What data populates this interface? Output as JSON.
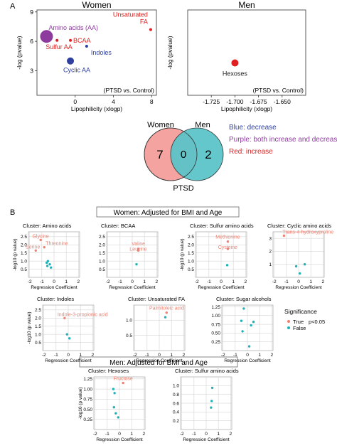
{
  "panel_labels": {
    "a": "A",
    "b": "B"
  },
  "venn": {
    "left_label": "Women",
    "right_label": "Men",
    "left_value": "7",
    "overlap_value": "0",
    "right_value": "2",
    "bottom_label": "PTSD",
    "left_color": "#f4a3a0",
    "right_color": "#5cc4c8",
    "legend": [
      {
        "text": "Blue: decrease",
        "color": "#2e3fa0"
      },
      {
        "text": "Purple: both increase and decrease",
        "color": "#8e3b9e"
      },
      {
        "text": "Red: increase",
        "color": "#e02020"
      }
    ]
  },
  "section_headers": {
    "women": "Women: Adjusted for BMI and Age",
    "men": "Men: Adjusted for BMI and Age"
  },
  "significance_legend": {
    "title": "Significance",
    "items": [
      {
        "label": "True",
        "color": "#f08070"
      },
      {
        "label": "False",
        "color": "#20b2b8"
      }
    ],
    "note": "p<0.05"
  },
  "chart_data": [
    {
      "id": "women-bubble",
      "type": "scatter",
      "title": "Women",
      "xlabel": "Lipophilicity (xlogp)",
      "ylabel": "-log (pvalue)",
      "annotation": "(PTSD vs. Control)",
      "xlim": [
        -4,
        8.5
      ],
      "ylim": [
        0.5,
        9.2
      ],
      "xticks": [
        "0",
        "4",
        "8"
      ],
      "yticks": [
        "3",
        "6",
        "9"
      ],
      "points": [
        {
          "label": "Amino acids (AA)",
          "x": -3.0,
          "y": 6.5,
          "size": 9,
          "color": "#8e3b9e"
        },
        {
          "label": "BCAA",
          "x": -0.5,
          "y": 6.1,
          "size": 2,
          "color": "#e02020"
        },
        {
          "label": "Sulfur AA",
          "x": -1.9,
          "y": 6.1,
          "size": 2,
          "color": "#e02020"
        },
        {
          "label": "Indoles",
          "x": 1.2,
          "y": 5.5,
          "size": 2,
          "color": "#2e3fa0"
        },
        {
          "label": "Cyclic AA",
          "x": -0.5,
          "y": 4.0,
          "size": 5,
          "color": "#2e3fa0"
        },
        {
          "label": "Unsaturated FA",
          "x": 7.9,
          "y": 7.2,
          "size": 2,
          "color": "#e02020"
        }
      ]
    },
    {
      "id": "men-bubble",
      "type": "scatter",
      "title": "Men",
      "xlabel": "Lipophilicity (xlogp)",
      "ylabel": "-log (pvalue)",
      "annotation": "(PTSD vs. Control)",
      "xlim": [
        -1.75,
        -1.625
      ],
      "ylim": [
        0.5,
        9.2
      ],
      "xticks": [
        "-1.725",
        "-1.700",
        "-1.675",
        "-1.650"
      ],
      "points": [
        {
          "label": "Hexoses",
          "x": -1.7,
          "y": 3.8,
          "size": 5,
          "color": "#e02020"
        }
      ]
    },
    {
      "id": "w-amino-acids",
      "type": "scatter",
      "title": "Cluster: Amino acids",
      "xlabel": "Regression Coefficient",
      "ylabel": "-log10 (p value)",
      "xlim": [
        -2.1,
        2.1
      ],
      "ylim": [
        0,
        2.8
      ],
      "xticks": [
        "-2",
        "-1",
        "0",
        "1",
        "2"
      ],
      "yticks": [
        "0.5",
        "1.0",
        "1.5",
        "2.0",
        "2.5"
      ],
      "points": [
        {
          "label": "Glycine",
          "x": -1.1,
          "y": 2.3,
          "sig": true
        },
        {
          "label": "Threonine",
          "x": -0.8,
          "y": 1.85,
          "sig": true
        },
        {
          "label": "Serine",
          "x": -1.5,
          "y": 1.65,
          "sig": true
        },
        {
          "x": -0.5,
          "y": 1.0,
          "sig": false
        },
        {
          "x": -0.6,
          "y": 0.9,
          "sig": false
        },
        {
          "x": -0.35,
          "y": 0.8,
          "sig": false
        },
        {
          "x": -0.55,
          "y": 0.7,
          "sig": false
        },
        {
          "x": -0.25,
          "y": 0.6,
          "sig": false
        }
      ]
    },
    {
      "id": "w-bcaa",
      "type": "scatter",
      "title": "Cluster: BCAA",
      "xlabel": "Regression Coefficient",
      "ylabel": "",
      "xlim": [
        -2.1,
        2.1
      ],
      "ylim": [
        0,
        2.8
      ],
      "xticks": [
        "-2",
        "-1",
        "0",
        "1",
        "2"
      ],
      "yticks": [
        "0.5",
        "1.0",
        "1.5",
        "2.0",
        "2.5"
      ],
      "points": [
        {
          "label": "Valine",
          "x": 0.5,
          "y": 1.75,
          "sig": true
        },
        {
          "label": "Leucine",
          "x": 0.5,
          "y": 1.65,
          "sig": true
        },
        {
          "x": 0.35,
          "y": 0.8,
          "sig": false
        }
      ]
    },
    {
      "id": "w-sulfur-aa",
      "type": "scatter",
      "title": "Cluster: Sulfur amino acids",
      "xlabel": "Regression Coefficient",
      "ylabel": "-log10 (p value)",
      "xlim": [
        -2.1,
        2.1
      ],
      "ylim": [
        0,
        2.8
      ],
      "xticks": [
        "-2",
        "-1",
        "0",
        "1",
        "2"
      ],
      "yticks": [
        "0.5",
        "1.0",
        "1.5",
        "2.0",
        "2.5"
      ],
      "points": [
        {
          "label": "Methionine",
          "x": 0.55,
          "y": 2.2,
          "sig": true
        },
        {
          "label": "Cysteine",
          "x": 0.55,
          "y": 1.75,
          "sig": true
        },
        {
          "x": 0.5,
          "y": 0.75,
          "sig": false
        }
      ]
    },
    {
      "id": "w-cyclic-aa",
      "type": "scatter",
      "title": "Cluster: Cyclic amino acids",
      "xlabel": "Regression Coefficient",
      "ylabel": "",
      "xlim": [
        -2.1,
        2.1
      ],
      "ylim": [
        0,
        3.5
      ],
      "xticks": [
        "-2",
        "-1",
        "0",
        "1",
        "2"
      ],
      "yticks": [
        "1",
        "2",
        "3"
      ],
      "points": [
        {
          "label": "Trans-4-hydroxyproline",
          "x": -1.2,
          "y": 3.2,
          "sig": true
        },
        {
          "x": 0.5,
          "y": 1.0,
          "sig": false
        },
        {
          "x": -0.2,
          "y": 0.85,
          "sig": false
        },
        {
          "x": 0.1,
          "y": 0.3,
          "sig": false
        }
      ]
    },
    {
      "id": "w-indoles",
      "type": "scatter",
      "title": "Cluster: Indoles",
      "xlabel": "Regression Coefficient",
      "ylabel": "-log10 (p value)",
      "xlim": [
        -2.1,
        2.1
      ],
      "ylim": [
        0,
        2.8
      ],
      "xticks": [
        "-2",
        "-1",
        "0",
        "1",
        "2"
      ],
      "yticks": [
        "0.5",
        "1.0",
        "1.5",
        "2.0",
        "2.5"
      ],
      "points": [
        {
          "label": "Indole-3-propionic acid",
          "x": -0.3,
          "y": 2.0,
          "sig": true
        },
        {
          "x": -0.1,
          "y": 1.0,
          "sig": false
        },
        {
          "x": 0.1,
          "y": 0.75,
          "sig": false
        }
      ]
    },
    {
      "id": "w-unsat-fa",
      "type": "scatter",
      "title": "Cluster: Unsaturated FA",
      "xlabel": "Regression Coefficient",
      "ylabel": "",
      "xlim": [
        -2.1,
        2.1
      ],
      "ylim": [
        0,
        1.5
      ],
      "xticks": [
        "-2",
        "-1",
        "0",
        "1",
        "2"
      ],
      "yticks": [
        "0.5",
        "1.0"
      ],
      "points": [
        {
          "label": "Palmitoleic acid",
          "x": 0.6,
          "y": 1.25,
          "sig": true
        },
        {
          "x": 0.5,
          "y": 1.1,
          "sig": false
        }
      ]
    },
    {
      "id": "w-sugar-alcohols",
      "type": "scatter",
      "title": "Cluster: Sugar alcohols",
      "xlabel": "Regression Coefficient",
      "ylabel": "",
      "xlim": [
        -2.1,
        2.1
      ],
      "ylim": [
        0,
        1.3
      ],
      "xticks": [
        "-2",
        "-1",
        "0",
        "1",
        "2"
      ],
      "yticks": [
        "0.25",
        "0.50",
        "0.75",
        "1.00",
        "1.25"
      ],
      "points": [
        {
          "x": -0.3,
          "y": 1.2,
          "sig": false
        },
        {
          "x": -0.5,
          "y": 0.85,
          "sig": false
        },
        {
          "x": 0.5,
          "y": 0.82,
          "sig": false
        },
        {
          "x": 0.3,
          "y": 0.72,
          "sig": false
        },
        {
          "x": -0.4,
          "y": 0.55,
          "sig": false
        },
        {
          "x": 0.15,
          "y": 0.12,
          "sig": false
        }
      ]
    },
    {
      "id": "m-hexoses",
      "type": "scatter",
      "title": "Cluster: Hexoses",
      "xlabel": "Regression Coefficient",
      "ylabel": "-log10 (p value)",
      "xlim": [
        -2.1,
        2.1
      ],
      "ylim": [
        0,
        1.3
      ],
      "xticks": [
        "-2",
        "-1",
        "0",
        "1",
        "2"
      ],
      "yticks": [
        "0.25",
        "0.50",
        "0.75",
        "1.00",
        "1.25"
      ],
      "points": [
        {
          "label": "Fructose",
          "x": 0.3,
          "y": 1.15,
          "sig": true
        },
        {
          "x": -0.5,
          "y": 1.0,
          "sig": false
        },
        {
          "x": -0.4,
          "y": 0.9,
          "sig": false
        },
        {
          "x": -0.45,
          "y": 0.55,
          "sig": false
        },
        {
          "x": -0.3,
          "y": 0.4,
          "sig": false
        },
        {
          "x": -0.1,
          "y": 0.3,
          "sig": false
        }
      ]
    },
    {
      "id": "m-sulfur-aa",
      "type": "scatter",
      "title": "Cluster: Sulfur amino acids",
      "xlabel": "Regression Coefficient",
      "ylabel": "",
      "xlim": [
        -2.1,
        2.1
      ],
      "ylim": [
        0,
        1.2
      ],
      "xticks": [
        "-2",
        "-1",
        "0",
        "1",
        "2"
      ],
      "yticks": [
        "0.2",
        "0.4",
        "0.6",
        "0.8",
        "1.0"
      ],
      "points": [
        {
          "x": 0.5,
          "y": 0.95,
          "sig": false
        },
        {
          "x": 0.45,
          "y": 0.65,
          "sig": false
        },
        {
          "x": 0.4,
          "y": 0.5,
          "sig": false
        }
      ]
    }
  ]
}
